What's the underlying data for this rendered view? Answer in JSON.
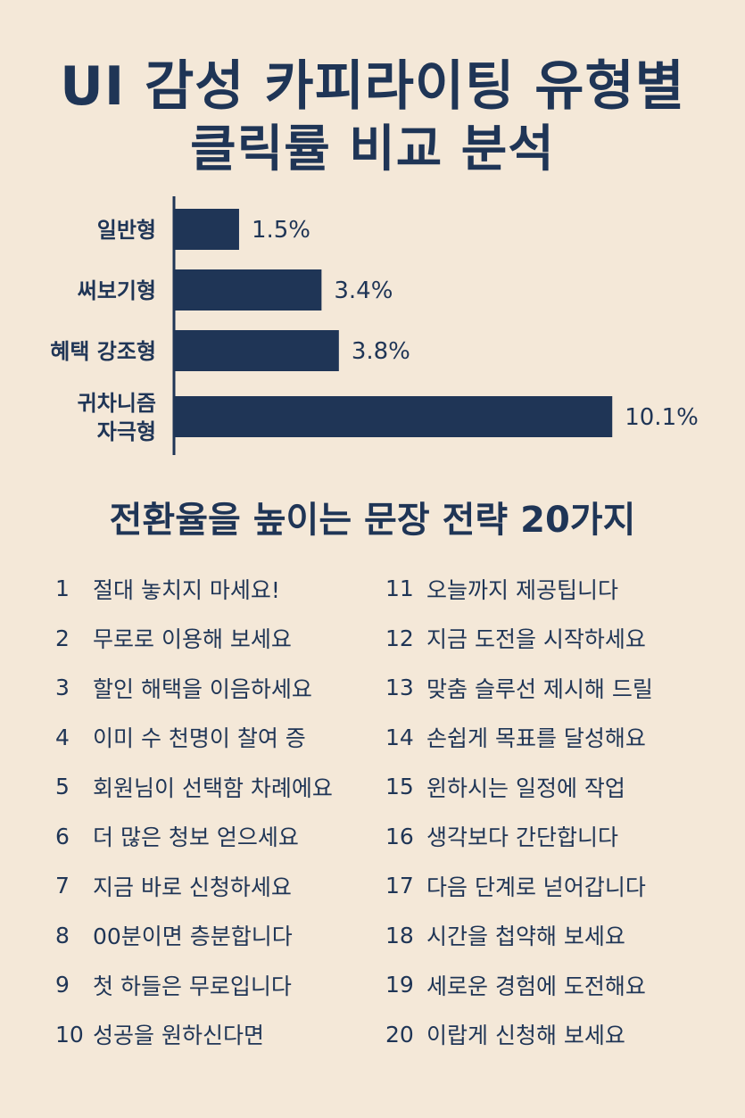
{
  "header": {
    "title_line1": "UI 감성 카피라이팅 유형별",
    "title_line2": "클릭률 비교 분석"
  },
  "chart_data": {
    "type": "bar",
    "orientation": "horizontal",
    "categories": [
      [
        "일반형"
      ],
      [
        "써보기형"
      ],
      [
        "혜택 강조형"
      ],
      [
        "귀차니즘",
        "자극형"
      ]
    ],
    "values": [
      1.5,
      3.4,
      3.8,
      10.1
    ],
    "value_labels": [
      "1.5%",
      "3.4%",
      "3.8%",
      "10.1%"
    ],
    "xlim": [
      0,
      11
    ],
    "grid": false,
    "colors": {
      "bar": "#1f3556",
      "text": "#1f3556",
      "background": "#f4e8d8"
    }
  },
  "strategies": {
    "title": "전환율을 높이는 문장 전략 20가지",
    "left": [
      {
        "num": "1",
        "text": "절대 놓치지 마세요!"
      },
      {
        "num": "2",
        "text": "무로로 이용해 보세요"
      },
      {
        "num": "3",
        "text": "할인 해택을 이음하세요"
      },
      {
        "num": "4",
        "text": "이미 수 천명이 찰여 증"
      },
      {
        "num": "5",
        "text": "회원님이 선택함 차례에요"
      },
      {
        "num": "6",
        "text": "더 많은 청보 얻으세요"
      },
      {
        "num": "7",
        "text": "지금 바로 신청하세요"
      },
      {
        "num": "8",
        "text": "00분이면 층분합니다"
      },
      {
        "num": "9",
        "text": "첫 하들은 무로입니다"
      },
      {
        "num": "10",
        "text": "성공을 원하신다면"
      }
    ],
    "right": [
      {
        "num": "11",
        "text": "오늘까지 제공팁니다"
      },
      {
        "num": "12",
        "text": "지금 도전을 시작하세요"
      },
      {
        "num": "13",
        "text": "맞춤 슬루선 제시해 드릴"
      },
      {
        "num": "14",
        "text": "손쉽게 목표를 달성해요"
      },
      {
        "num": "15",
        "text": "윈하시는 일정에 작업"
      },
      {
        "num": "16",
        "text": "생각보다 간단합니다"
      },
      {
        "num": "17",
        "text": "다음 단계로 넏어갑니다"
      },
      {
        "num": "18",
        "text": "시간을 첩약해 보세요"
      },
      {
        "num": "19",
        "text": "세로운 경험에 도전해요"
      },
      {
        "num": "20",
        "text": "이랍게 신청해 보세요"
      }
    ]
  }
}
